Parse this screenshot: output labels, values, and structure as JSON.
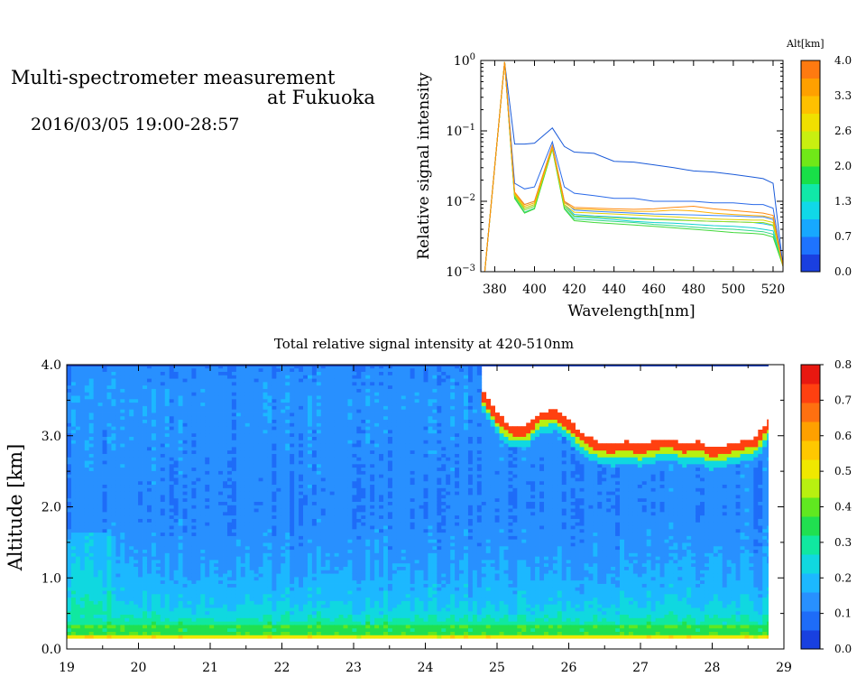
{
  "header": {
    "title_line1": "Multi-spectrometer measurement",
    "title_line2": "at Fukuoka",
    "datetime": "2016/03/05 19:00-28:57"
  },
  "chart_data": [
    {
      "type": "line",
      "title": "",
      "xlabel": "Wavelength[nm]",
      "ylabel": "Relative signal intensity",
      "yscale": "log",
      "xlim": [
        373,
        525
      ],
      "ylim": [
        0.001,
        1
      ],
      "xticks": [
        380,
        400,
        420,
        440,
        460,
        480,
        500,
        520
      ],
      "yticks": [
        {
          "value": 1,
          "label": "10^0"
        },
        {
          "value": 0.1,
          "label": "10^-1"
        },
        {
          "value": 0.01,
          "label": "10^-2"
        },
        {
          "value": 0.001,
          "label": "10^-3"
        }
      ],
      "x": [
        375,
        385,
        390,
        395,
        400,
        409,
        415,
        420,
        430,
        440,
        450,
        460,
        470,
        480,
        490,
        500,
        510,
        515,
        520,
        525
      ],
      "colorbar": {
        "label": "Alt[km]",
        "ticks": [
          "4.0",
          "3.3",
          "2.6",
          "2.0",
          "1.3",
          "0.7",
          "0.0"
        ],
        "colors": [
          "#1a3fe0",
          "#1e73ff",
          "#17a8ff",
          "#10d8e8",
          "#10e8a8",
          "#18e048",
          "#70e818",
          "#c8f010",
          "#f0e000",
          "#ffc000",
          "#ffa000",
          "#ff7a10"
        ]
      },
      "series": [
        {
          "color": "#1a5ad8",
          "values": [
            0.001,
            0.95,
            0.065,
            0.065,
            0.067,
            0.11,
            0.06,
            0.05,
            0.048,
            0.037,
            0.036,
            0.033,
            0.03,
            0.027,
            0.026,
            0.024,
            0.022,
            0.021,
            0.018,
            0.0012
          ]
        },
        {
          "color": "#2a6ae8",
          "values": [
            0.001,
            0.95,
            0.018,
            0.015,
            0.016,
            0.07,
            0.016,
            0.013,
            0.012,
            0.011,
            0.011,
            0.01,
            0.01,
            0.01,
            0.0095,
            0.0095,
            0.009,
            0.009,
            0.008,
            0.0012
          ]
        },
        {
          "color": "#3a86ff",
          "values": [
            0.001,
            0.95,
            0.013,
            0.009,
            0.01,
            0.062,
            0.01,
            0.0075,
            0.0072,
            0.007,
            0.0068,
            0.0066,
            0.0065,
            0.0064,
            0.0063,
            0.0062,
            0.006,
            0.006,
            0.0055,
            0.0012
          ]
        },
        {
          "color": "#20b8f0",
          "values": [
            0.001,
            0.95,
            0.012,
            0.008,
            0.009,
            0.058,
            0.009,
            0.0065,
            0.0062,
            0.006,
            0.0058,
            0.0056,
            0.0055,
            0.0053,
            0.0052,
            0.0051,
            0.005,
            0.0048,
            0.0045,
            0.0012
          ]
        },
        {
          "color": "#10d0d0",
          "values": [
            0.001,
            0.95,
            0.012,
            0.0075,
            0.0085,
            0.058,
            0.0085,
            0.006,
            0.0058,
            0.0055,
            0.0052,
            0.005,
            0.0049,
            0.0047,
            0.0045,
            0.0044,
            0.0042,
            0.004,
            0.0038,
            0.0012
          ]
        },
        {
          "color": "#30d888",
          "values": [
            0.001,
            0.95,
            0.0115,
            0.007,
            0.008,
            0.056,
            0.008,
            0.0056,
            0.0054,
            0.0052,
            0.005,
            0.0047,
            0.0045,
            0.0043,
            0.0041,
            0.004,
            0.0038,
            0.0037,
            0.0034,
            0.0012
          ]
        },
        {
          "color": "#40d838",
          "values": [
            0.001,
            0.95,
            0.011,
            0.0068,
            0.0078,
            0.055,
            0.0078,
            0.0053,
            0.005,
            0.0048,
            0.0046,
            0.0044,
            0.0042,
            0.004,
            0.0038,
            0.0036,
            0.0035,
            0.0034,
            0.0031,
            0.0012
          ]
        },
        {
          "color": "#98e020",
          "values": [
            0.001,
            0.95,
            0.012,
            0.0075,
            0.0085,
            0.057,
            0.0085,
            0.0062,
            0.006,
            0.0058,
            0.0056,
            0.0055,
            0.0054,
            0.0053,
            0.0052,
            0.0051,
            0.005,
            0.005,
            0.0046,
            0.0012
          ]
        },
        {
          "color": "#e0d000",
          "values": [
            0.001,
            0.95,
            0.0125,
            0.008,
            0.009,
            0.058,
            0.009,
            0.007,
            0.0068,
            0.0066,
            0.0064,
            0.0062,
            0.006,
            0.0058,
            0.0056,
            0.0055,
            0.0054,
            0.0054,
            0.005,
            0.0012
          ]
        },
        {
          "color": "#ffb000",
          "values": [
            0.001,
            0.95,
            0.013,
            0.0085,
            0.0095,
            0.06,
            0.0095,
            0.0078,
            0.0076,
            0.0074,
            0.0072,
            0.0072,
            0.0075,
            0.0073,
            0.0068,
            0.0065,
            0.0063,
            0.0062,
            0.0058,
            0.0012
          ]
        },
        {
          "color": "#ff8a10",
          "values": [
            0.001,
            0.95,
            0.0135,
            0.009,
            0.01,
            0.062,
            0.01,
            0.0082,
            0.008,
            0.0078,
            0.0077,
            0.0078,
            0.0082,
            0.0085,
            0.0078,
            0.0074,
            0.007,
            0.0068,
            0.0063,
            0.0012
          ]
        }
      ]
    },
    {
      "type": "heatmap",
      "title": "Total relative signal intensity at 420-510nm",
      "xlabel": "",
      "ylabel": "Altitude [km]",
      "xlim": [
        19,
        29
      ],
      "ylim": [
        0,
        4
      ],
      "xticks": [
        "19",
        "20",
        "21",
        "22",
        "23",
        "24",
        "25",
        "26",
        "27",
        "28",
        "29"
      ],
      "yticks": [
        "0.0",
        "1.0",
        "2.0",
        "3.0",
        "4.0"
      ],
      "data_end_x": 28.95,
      "colorbar": {
        "range": [
          0,
          0.8
        ],
        "ticks": [
          "0.8",
          "0.7",
          "0.6",
          "0.5",
          "0.4",
          "0.3",
          "0.2",
          "0.1",
          "0.0"
        ],
        "colors": [
          "#1840e0",
          "#1e6cf8",
          "#2890ff",
          "#1cb8ff",
          "#10d8e0",
          "#10e8a0",
          "#20e050",
          "#60e820",
          "#b8f010",
          "#f0e800",
          "#ffc800",
          "#ffa000",
          "#ff7010",
          "#ff4010",
          "#e81810"
        ]
      },
      "profile": {
        "altitudes": [
          0.15,
          0.18,
          0.25,
          0.3,
          0.35,
          0.5,
          0.7,
          1.0,
          1.4,
          2.0,
          2.8,
          3.5,
          4.0
        ],
        "values": [
          0.75,
          0.45,
          0.3,
          0.4,
          0.3,
          0.24,
          0.2,
          0.17,
          0.14,
          0.12,
          0.13,
          0.14,
          0.12
        ]
      },
      "cloud_base": {
        "x": [
          24.8,
          25.0,
          25.2,
          25.4,
          25.6,
          25.8,
          26.0,
          26.2,
          26.4,
          26.6,
          26.8,
          27.0,
          27.2,
          27.4,
          27.6,
          27.8,
          28.0,
          28.2,
          28.4,
          28.6,
          28.8
        ],
        "alt": [
          3.6,
          3.3,
          3.1,
          3.1,
          3.3,
          3.35,
          3.2,
          3.0,
          2.9,
          2.85,
          2.9,
          2.85,
          2.9,
          2.95,
          2.85,
          2.9,
          2.8,
          2.85,
          2.9,
          2.95,
          3.2
        ]
      }
    }
  ]
}
